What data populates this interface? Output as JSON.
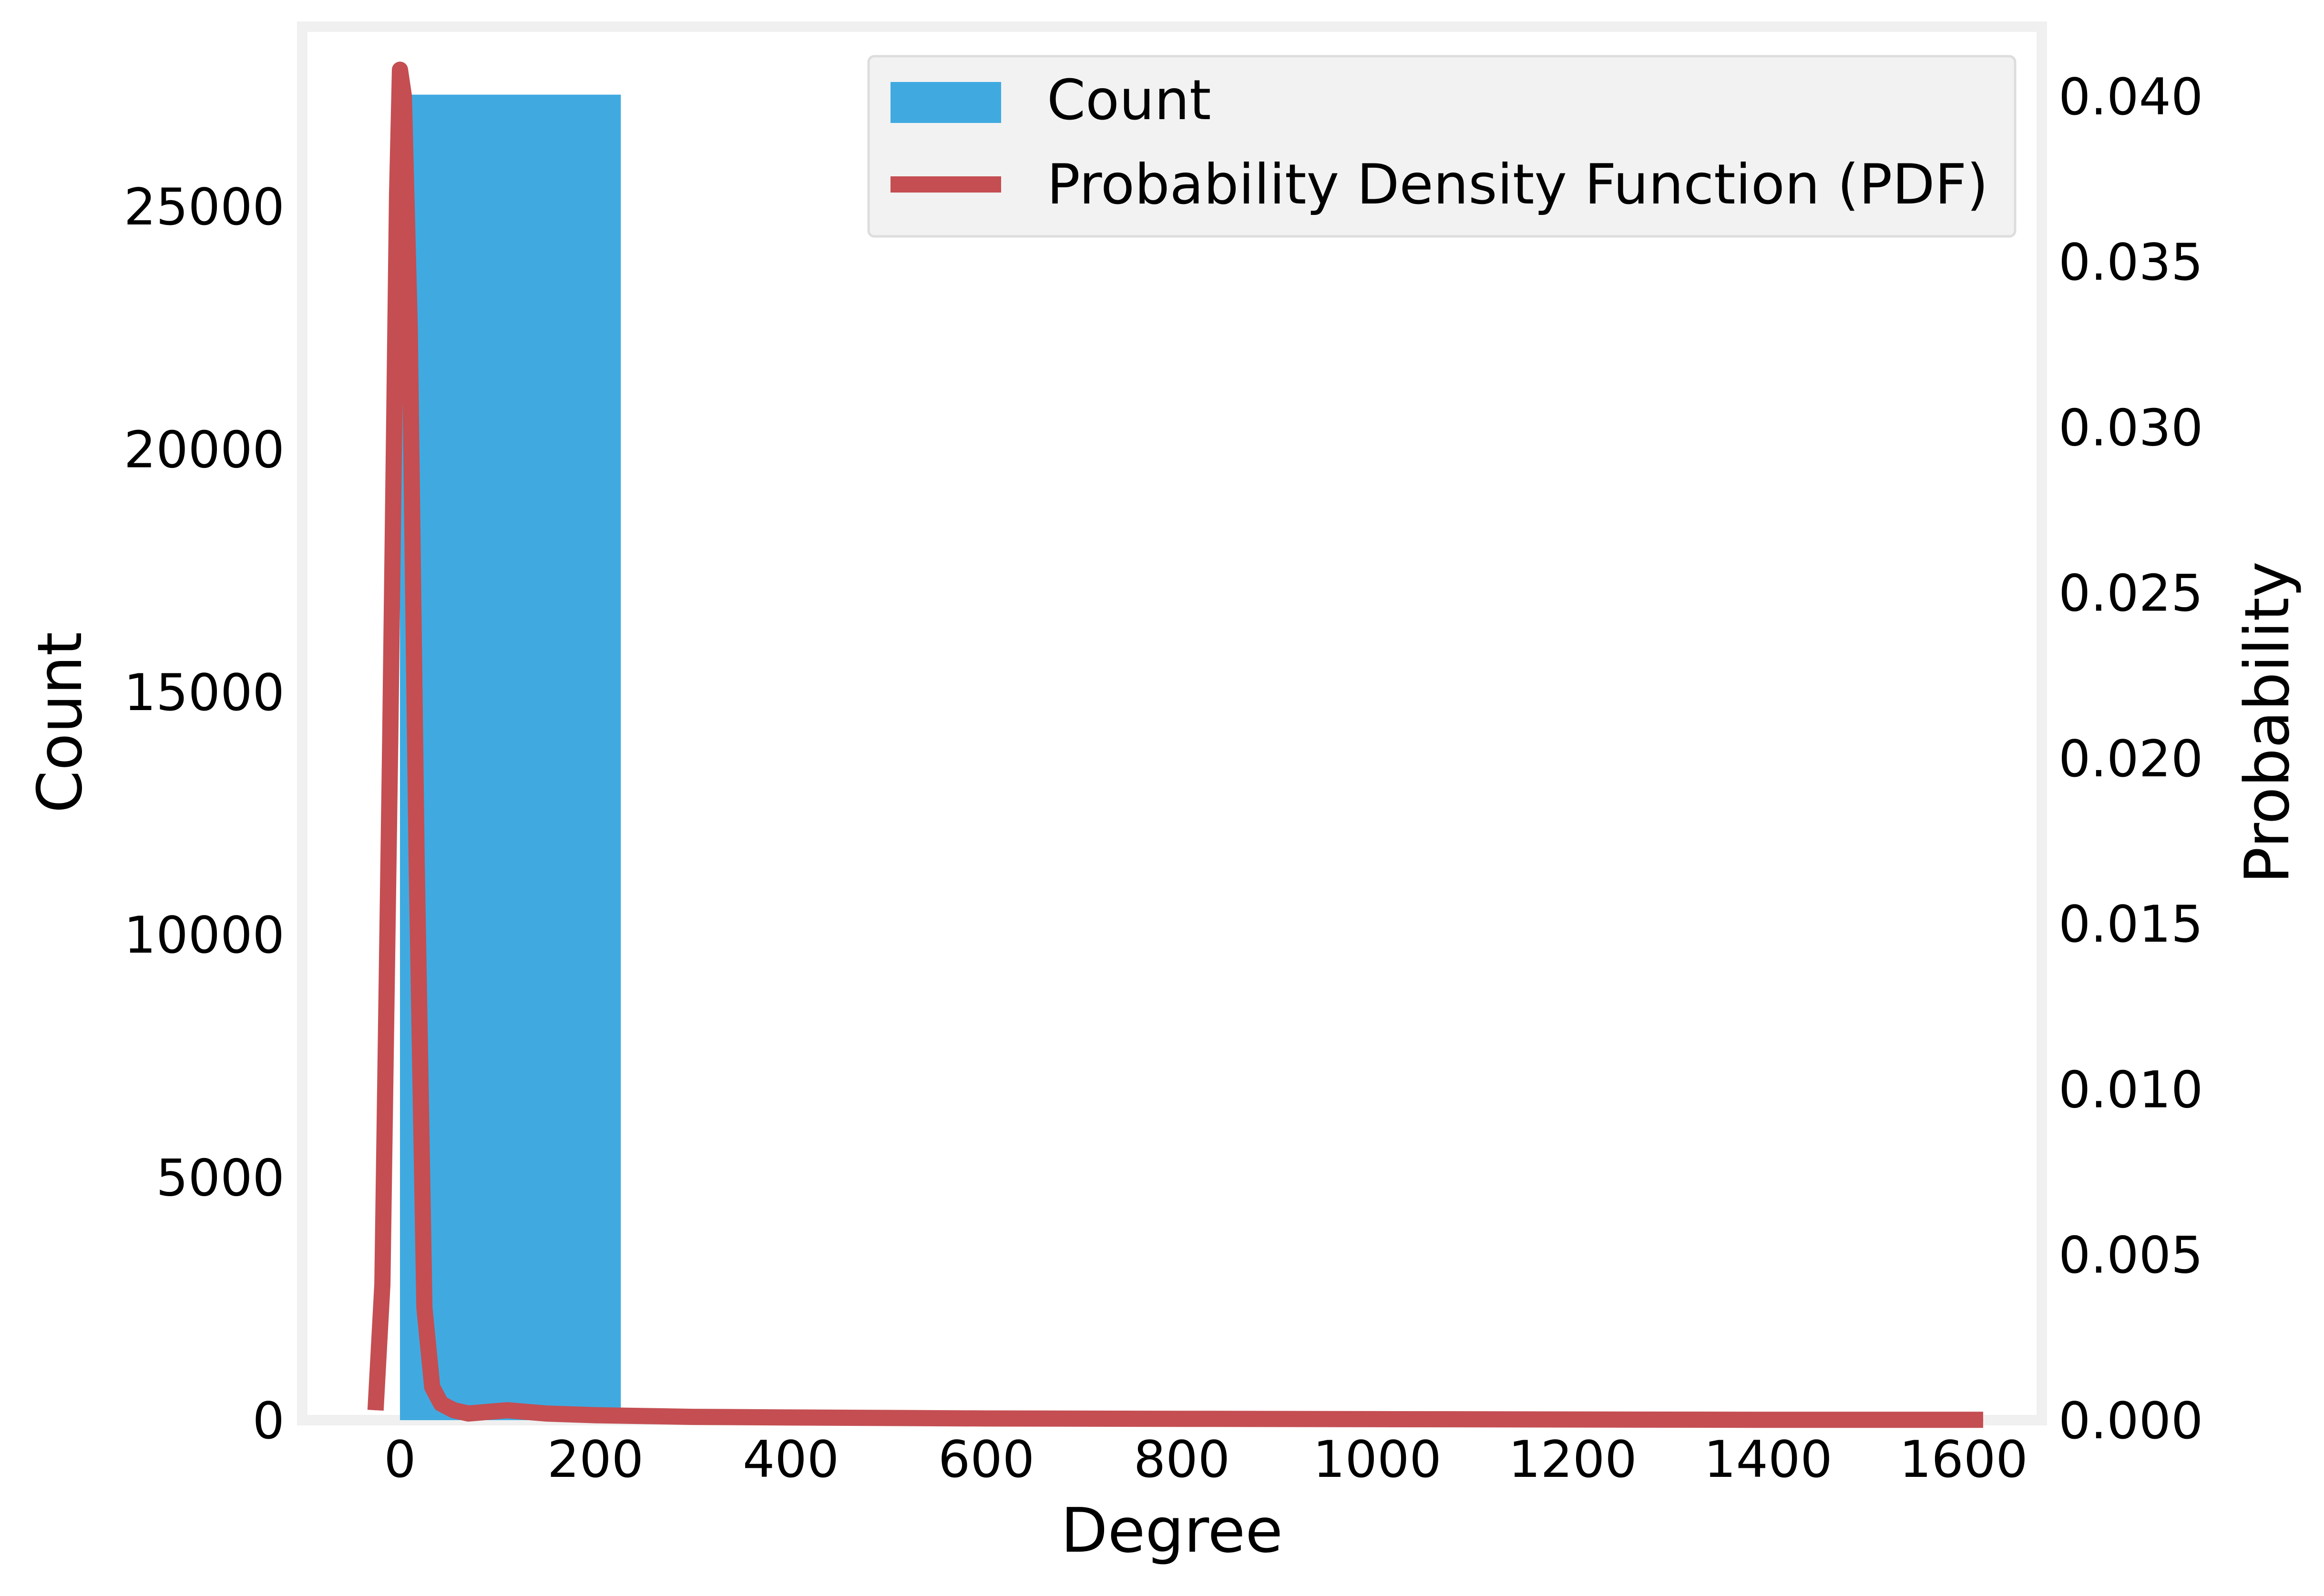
{
  "chart_data": {
    "type": "bar",
    "title": "",
    "xlabel": "Degree",
    "ylabel_left": "Count",
    "ylabel_right": "Probability",
    "xlim": [
      -100,
      1680
    ],
    "ylim_left": [
      0,
      28700
    ],
    "ylim_right": [
      0,
      0.0421
    ],
    "x_ticks": [
      0,
      200,
      400,
      600,
      800,
      1000,
      1200,
      1400,
      1600
    ],
    "y_ticks_left": [
      0,
      5000,
      10000,
      15000,
      20000,
      25000
    ],
    "y_ticks_right": [
      0.0,
      0.005,
      0.01,
      0.015,
      0.02,
      0.025,
      0.03,
      0.035,
      0.04
    ],
    "y_ticks_right_labels": [
      "0.000",
      "0.005",
      "0.010",
      "0.015",
      "0.020",
      "0.025",
      "0.030",
      "0.035",
      "0.040"
    ],
    "grid": false,
    "legend_position": "top-right",
    "colors": {
      "bar": "#40aae0",
      "line": "#c44e52",
      "frame": "#f0f0f0",
      "legend_bg": "#f2f2f2"
    },
    "series": [
      {
        "name": "Count",
        "type": "bar",
        "bins": [
          {
            "x0": 0,
            "x1": 226,
            "count": 27300
          },
          {
            "x0": 226,
            "x1": 452,
            "count": 6
          },
          {
            "x0": 452,
            "x1": 678,
            "count": 2
          },
          {
            "x0": 678,
            "x1": 904,
            "count": 1
          },
          {
            "x0": 904,
            "x1": 1130,
            "count": 1
          },
          {
            "x0": 1130,
            "x1": 1356,
            "count": 1
          },
          {
            "x0": 1356,
            "x1": 1582,
            "count": 1
          }
        ]
      },
      {
        "name": "Probability Density Function (PDF)",
        "type": "line",
        "axis": "right",
        "x": [
          -25,
          -18,
          -10,
          -3,
          0,
          4,
          10,
          17,
          25,
          33,
          42,
          55,
          70,
          90,
          110,
          150,
          200,
          300,
          400,
          600,
          800,
          1000,
          1200,
          1400,
          1620
        ],
        "y": [
          0.0003,
          0.0041,
          0.0205,
          0.037,
          0.0408,
          0.04,
          0.033,
          0.017,
          0.0034,
          0.001,
          0.0005,
          0.0003,
          0.0002,
          0.00025,
          0.0003,
          0.0002,
          0.00015,
          0.0001,
          8e-05,
          5e-05,
          4e-05,
          3e-05,
          2e-05,
          1e-05,
          1e-05
        ]
      }
    ]
  }
}
